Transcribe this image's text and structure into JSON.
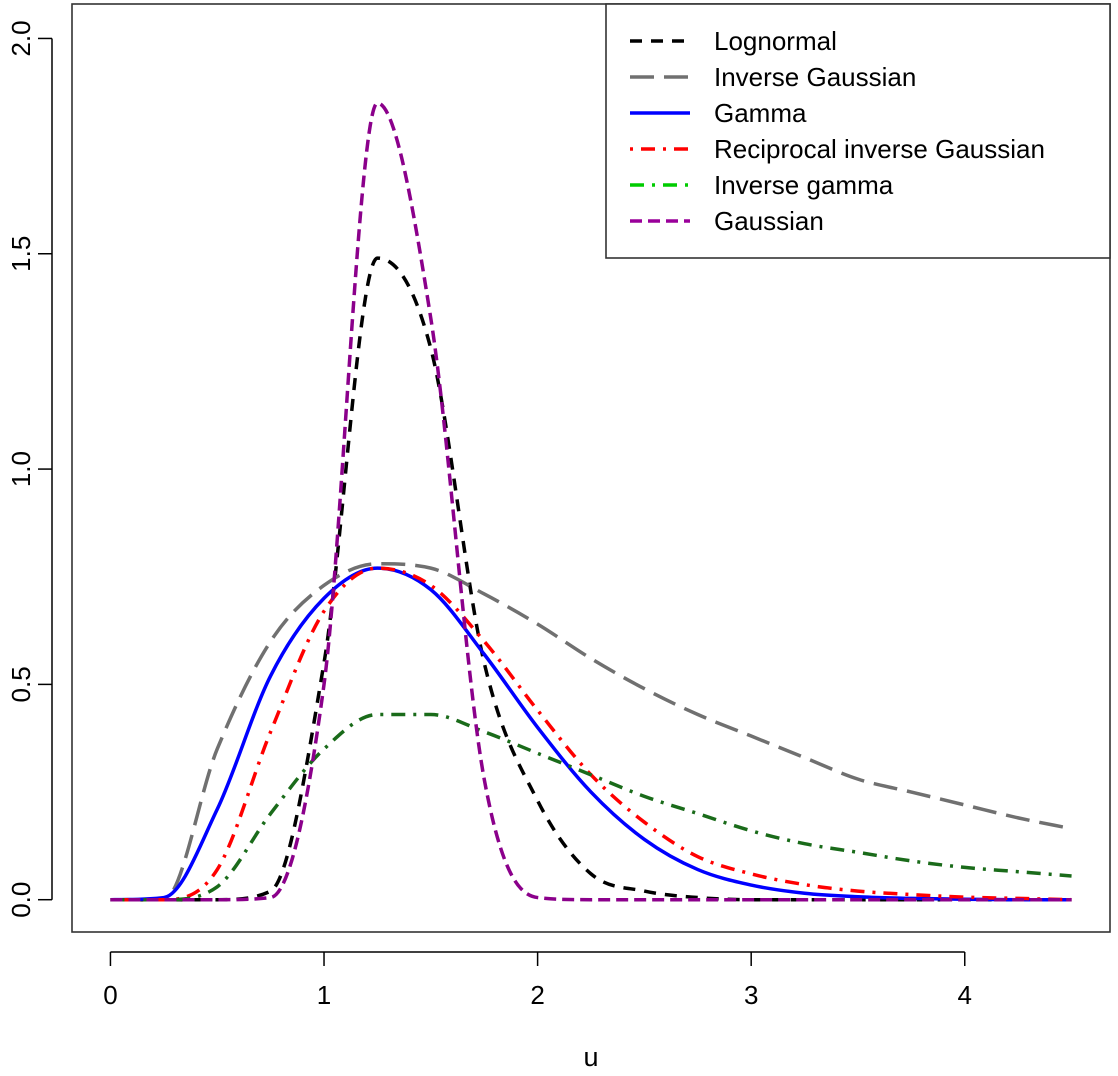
{
  "chart_data": {
    "type": "line",
    "title": "",
    "xlabel": "u",
    "ylabel": "",
    "xlim": [
      -0.18,
      4.68
    ],
    "ylim": [
      -0.075,
      2.08
    ],
    "x_ticks": [
      0,
      1,
      2,
      3,
      4
    ],
    "x_tick_labels": [
      "0",
      "1",
      "2",
      "3",
      "4"
    ],
    "y_ticks": [
      0.0,
      0.5,
      1.0,
      1.5,
      2.0
    ],
    "y_tick_labels": [
      "0.0",
      "0.5",
      "1.0",
      "1.5",
      "2.0"
    ],
    "grid": false,
    "legend_position": "top-right",
    "x": [
      0,
      0.25,
      0.5,
      0.75,
      1.0,
      1.25,
      1.5,
      1.75,
      2.0,
      2.25,
      2.5,
      2.75,
      3.0,
      3.25,
      3.5,
      3.75,
      4.0,
      4.25,
      4.5
    ],
    "series": [
      {
        "name": "Lognormal",
        "color": "#000000",
        "dash": "12,9",
        "width": 3.5,
        "values": [
          0,
          0,
          0,
          0.02,
          0.55,
          1.49,
          1.28,
          0.55,
          0.23,
          0.06,
          0.02,
          0.005,
          0,
          0,
          0,
          0,
          0,
          0,
          0
        ]
      },
      {
        "name": "Inverse Gaussian",
        "color": "#707070",
        "dash": "24,10",
        "width": 3.5,
        "values": [
          0,
          0,
          0.35,
          0.6,
          0.73,
          0.78,
          0.77,
          0.71,
          0.64,
          0.56,
          0.49,
          0.43,
          0.38,
          0.33,
          0.28,
          0.25,
          0.22,
          0.19,
          0.165
        ]
      },
      {
        "name": "Gamma",
        "color": "#0000ff",
        "dash": "",
        "width": 3.5,
        "values": [
          0,
          0.005,
          0.21,
          0.52,
          0.7,
          0.77,
          0.72,
          0.57,
          0.4,
          0.25,
          0.14,
          0.07,
          0.034,
          0.015,
          0.007,
          0.003,
          0.001,
          0,
          0
        ]
      },
      {
        "name": "Reciprocal inverse Gaussian",
        "color": "#ff0000",
        "dash": "3,8,14,8",
        "width": 3.5,
        "values": [
          0,
          0,
          0.07,
          0.39,
          0.67,
          0.77,
          0.73,
          0.6,
          0.44,
          0.29,
          0.18,
          0.1,
          0.06,
          0.035,
          0.02,
          0.012,
          0.006,
          0.003,
          0
        ]
      },
      {
        "name": "Inverse gamma",
        "color": "#1a6b1a",
        "legend_color": "#00cc00",
        "dash": "14,8,3,8",
        "width": 3.5,
        "values": [
          0,
          0,
          0.03,
          0.2,
          0.35,
          0.43,
          0.43,
          0.39,
          0.34,
          0.29,
          0.24,
          0.2,
          0.16,
          0.13,
          0.11,
          0.09,
          0.075,
          0.065,
          0.055
        ]
      },
      {
        "name": "Gaussian",
        "color": "#8b008b",
        "legend_color": "#9a009a",
        "dash": "12,6",
        "width": 3.5,
        "values": [
          0,
          0,
          0,
          0.005,
          0.5,
          1.85,
          1.35,
          0.28,
          0.005,
          0,
          0,
          0,
          0,
          0,
          0,
          0,
          0,
          0,
          0
        ]
      }
    ]
  }
}
